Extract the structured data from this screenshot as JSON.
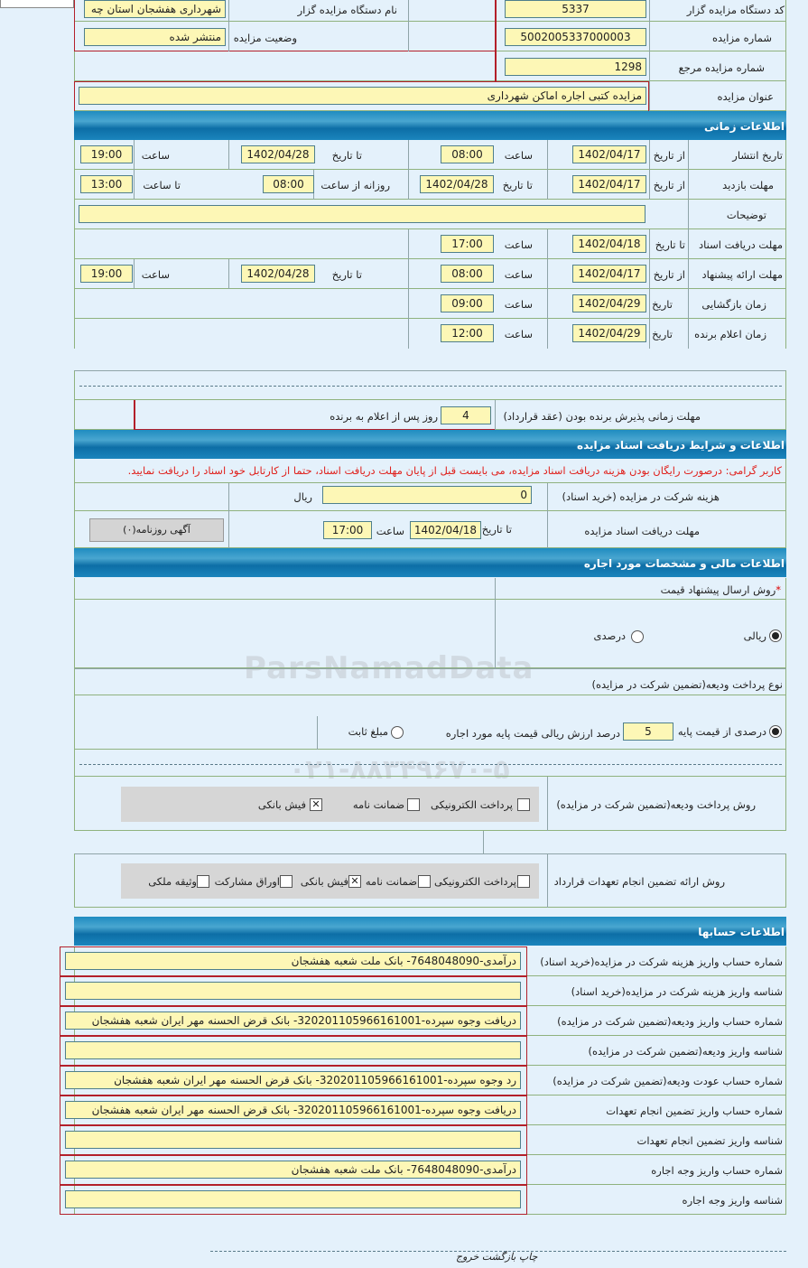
{
  "header": {
    "org_code_label": "کد دستگاه مزایده گزار",
    "org_code": "5337",
    "org_name_label": "نام دستگاه مزایده گزار",
    "org_name": "شهرداری هفشجان استان چه",
    "auction_no_label": "شماره مزایده",
    "auction_no": "5002005337000003",
    "status_label": "وضعیت مزایده",
    "status": "منتشر شده",
    "ref_no_label": "شماره مزایده مرجع",
    "ref_no": "1298",
    "title_label": "عنوان مزایده",
    "title": "مزایده کتبی اجاره اماکن شهرداری"
  },
  "timing": {
    "section": "اطلاعات زمانی",
    "from_date": "از تاریخ",
    "to_date": "تا تاریخ",
    "time": "ساعت",
    "date": "تاریخ",
    "daily_from": "روزانه از ساعت",
    "to_time": "تا ساعت",
    "publish": {
      "label": "تاریخ انتشار",
      "from": "1402/04/17",
      "from_time": "08:00",
      "to": "1402/04/28",
      "to_time": "19:00"
    },
    "visit": {
      "label": "مهلت بازدید",
      "from": "1402/04/17",
      "to": "1402/04/28",
      "daily_from": "08:00",
      "daily_to": "13:00"
    },
    "notes_label": "توضیحات",
    "notes": "",
    "docs": {
      "label": "مهلت دریافت اسناد",
      "to": "1402/04/18",
      "time": "17:00"
    },
    "offer": {
      "label": "مهلت ارائه پیشنهاد",
      "from": "1402/04/17",
      "from_time": "08:00",
      "to": "1402/04/28",
      "to_time": "19:00"
    },
    "opening": {
      "label": "زمان بازگشایی",
      "date": "1402/04/29",
      "time": "09:00"
    },
    "winner": {
      "label": "زمان اعلام برنده",
      "date": "1402/04/29",
      "time": "12:00"
    },
    "acceptance_label": "مهلت زمانی پذیرش برنده بودن (عقد قرارداد)",
    "acceptance_days": "4",
    "acceptance_suffix": "روز پس از اعلام به برنده"
  },
  "docs": {
    "section": "اطلاعات و شرایط دریافت اسناد مزایده",
    "notice": "کاربر گرامی: درصورت رایگان بودن هزینه دریافت اسناد مزایده، می بایست قبل از پایان مهلت دریافت اسناد، حتما از کارتابل خود اسناد را دریافت نمایید.",
    "fee_label": "هزینه شرکت در مزایده (خرید اسناد)",
    "fee": "0",
    "currency": "ریال",
    "deadline_label": "مهلت دریافت اسناد مزایده",
    "to_date": "تا تاریخ",
    "date": "1402/04/18",
    "time_label": "ساعت",
    "time": "17:00",
    "newspaper_button": "آگهی روزنامه(۰)"
  },
  "finance": {
    "section": "اطلاعات مالی و مشخصات مورد اجاره",
    "method_label": "روش ارسال پیشنهاد قیمت",
    "required_mark": "*",
    "rial": "ریالی",
    "percent": "درصدی",
    "selected": "rial",
    "deposit_type_label": "نوع پرداخت ودیعه(تضمین شرکت در مزایده)",
    "deposit_percent_label": "درصدی از قیمت پایه",
    "deposit_percent": "5",
    "deposit_percent_suffix": "درصد ارزش ریالی قیمت پایه مورد اجاره",
    "fixed_amount": "مبلغ ثابت",
    "deposit_method_label": "روش پرداخت ودیعه(تضمین شرکت در مزایده)",
    "deposit_methods": [
      {
        "label": "پرداخت الکترونیکی",
        "checked": false
      },
      {
        "label": "ضمانت نامه",
        "checked": false
      },
      {
        "label": "فیش بانکی",
        "checked": true
      }
    ],
    "guarantee_label": "روش ارائه تضمین انجام تعهدات قرارداد",
    "guarantee_methods": [
      {
        "label": "پرداخت الکترونیکی",
        "checked": false
      },
      {
        "label": "ضمانت نامه",
        "checked": false
      },
      {
        "label": "فیش بانکی",
        "checked": true
      },
      {
        "label": "اوراق مشارکت",
        "checked": false
      },
      {
        "label": "وثیقه ملکی",
        "checked": false
      }
    ]
  },
  "accounts": {
    "section": "اطلاعات حسابها",
    "rows": [
      {
        "label": "شماره حساب واریز هزینه شرکت در مزایده(خرید اسناد)",
        "value": "درآمدی-7648048090- بانک ملت شعبه هفشجان"
      },
      {
        "label": "شناسه واریز هزینه شرکت در مزایده(خرید اسناد)",
        "value": ""
      },
      {
        "label": "شماره حساب واریز ودیعه(تضمین شرکت در مزایده)",
        "value": "دریافت وجوه سپرده-320201105966161001- بانک قرض الحسنه مهر ایران شعبه هفشجان"
      },
      {
        "label": "شناسه واریز ودیعه(تضمین شرکت در مزایده)",
        "value": ""
      },
      {
        "label": "شماره حساب عودت ودیعه(تضمین شرکت در مزایده)",
        "value": "رد وجوه سپرده-320201105966161001- بانک قرض الحسنه مهر ایران شعبه هفشجان"
      },
      {
        "label": "شماره حساب واریز تضمین انجام تعهدات",
        "value": "دریافت وجوه سپرده-320201105966161001- بانک قرض الحسنه مهر ایران شعبه هفشجان"
      },
      {
        "label": "شناسه واریز تضمین انجام تعهدات",
        "value": ""
      },
      {
        "label": "شماره حساب واریز وجه اجاره",
        "value": "درآمدی-7648048090- بانک ملت شعبه هفشجان"
      },
      {
        "label": "شناسه واریز وجه اجاره",
        "value": ""
      }
    ]
  },
  "footer": {
    "print": "چاپ",
    "back": "بازگشت",
    "exit": "خروج"
  },
  "watermark": {
    "text": "ParsNamadData",
    "phone": "۰۲۱-۸۸۳۴۹۶۷۰-۵"
  },
  "colors": {
    "input_bg": "#fdf7b6",
    "section_blue": "#1a85bd",
    "notice_red": "#e0201c",
    "page_bg": "#e4f1fb"
  }
}
